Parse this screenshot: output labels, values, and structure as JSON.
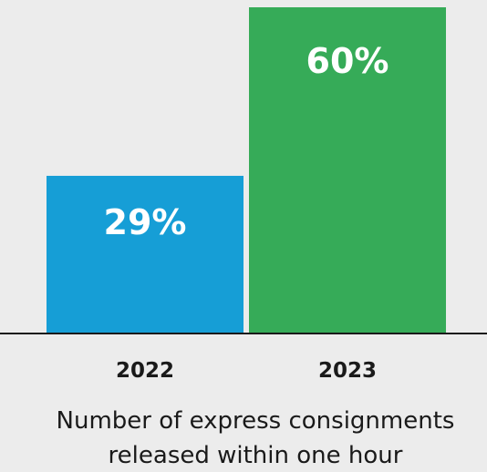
{
  "chart_data": {
    "type": "bar",
    "categories": [
      "2022",
      "2023"
    ],
    "values": [
      29,
      60
    ],
    "value_labels": [
      "29%",
      "60%"
    ],
    "colors": [
      "#169ed6",
      "#36ab58"
    ],
    "ylim": [
      0,
      60
    ],
    "xlabel_lines": [
      "Number of express consignments",
      "released within one hour"
    ],
    "grid": false,
    "legend": "none"
  }
}
